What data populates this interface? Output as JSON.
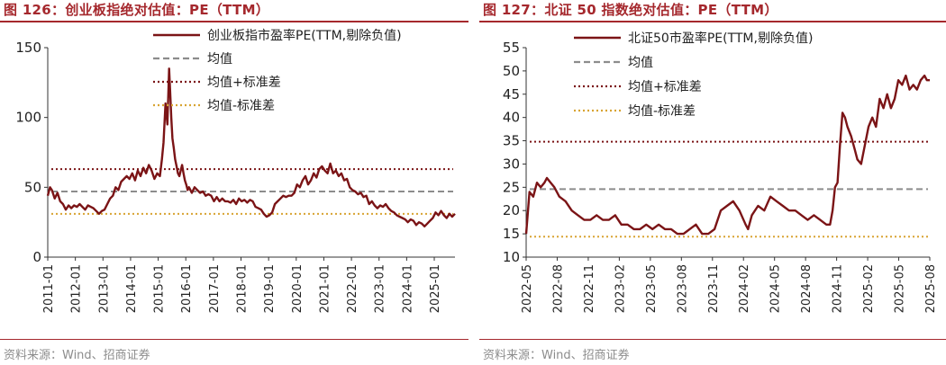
{
  "charts": [
    {
      "figure_title": "图 126：创业板指绝对估值：PE（TTM）",
      "source": "资料来源：Wind、招商证券",
      "chart_data": {
        "type": "line",
        "title": "图 126：创业板指绝对估值：PE（TTM）",
        "ylim": [
          0,
          150
        ],
        "yticks": [
          0,
          50,
          100,
          150
        ],
        "x_range": [
          2011.0,
          2025.7
        ],
        "x_ticks": [
          "2011-01",
          "2012-01",
          "2013-01",
          "2014-01",
          "2015-01",
          "2016-01",
          "2017-01",
          "2018-01",
          "2019-01",
          "2020-01",
          "2021-01",
          "2022-01",
          "2023-01",
          "2024-01",
          "2025-01"
        ],
        "legend_placement": "top-right",
        "series": [
          {
            "name": "创业板指市盈率PE(TTM,剔除负值)",
            "style": "solid",
            "color": "#7b1416",
            "x": [
              2011.0,
              2011.08,
              2011.15,
              2011.25,
              2011.35,
              2011.45,
              2011.55,
              2011.65,
              2011.75,
              2011.85,
              2011.95,
              2012.05,
              2012.15,
              2012.25,
              2012.35,
              2012.45,
              2012.55,
              2012.65,
              2012.75,
              2012.85,
              2012.95,
              2013.05,
              2013.15,
              2013.25,
              2013.35,
              2013.45,
              2013.55,
              2013.65,
              2013.75,
              2013.85,
              2013.95,
              2014.05,
              2014.15,
              2014.25,
              2014.35,
              2014.45,
              2014.55,
              2014.65,
              2014.75,
              2014.85,
              2014.95,
              2015.05,
              2015.12,
              2015.18,
              2015.25,
              2015.32,
              2015.38,
              2015.42,
              2015.46,
              2015.5,
              2015.55,
              2015.6,
              2015.65,
              2015.7,
              2015.75,
              2015.8,
              2015.85,
              2015.9,
              2015.95,
              2016.0,
              2016.05,
              2016.1,
              2016.2,
              2016.3,
              2016.4,
              2016.5,
              2016.6,
              2016.7,
              2016.8,
              2016.9,
              2017.0,
              2017.1,
              2017.2,
              2017.3,
              2017.4,
              2017.5,
              2017.6,
              2017.7,
              2017.8,
              2017.9,
              2018.0,
              2018.1,
              2018.2,
              2018.3,
              2018.4,
              2018.5,
              2018.6,
              2018.7,
              2018.8,
              2018.9,
              2019.0,
              2019.1,
              2019.2,
              2019.3,
              2019.4,
              2019.5,
              2019.6,
              2019.7,
              2019.8,
              2019.9,
              2020.0,
              2020.1,
              2020.2,
              2020.3,
              2020.4,
              2020.5,
              2020.6,
              2020.7,
              2020.8,
              2020.9,
              2021.0,
              2021.1,
              2021.2,
              2021.3,
              2021.4,
              2021.5,
              2021.6,
              2021.7,
              2021.8,
              2021.9,
              2022.0,
              2022.1,
              2022.2,
              2022.3,
              2022.4,
              2022.5,
              2022.6,
              2022.7,
              2022.8,
              2022.9,
              2023.0,
              2023.1,
              2023.2,
              2023.3,
              2023.4,
              2023.5,
              2023.6,
              2023.7,
              2023.8,
              2023.9,
              2024.0,
              2024.1,
              2024.2,
              2024.3,
              2024.4,
              2024.5,
              2024.6,
              2024.7,
              2024.8,
              2024.9,
              2025.0,
              2025.1,
              2025.2,
              2025.3,
              2025.4,
              2025.5,
              2025.6,
              2025.7
            ],
            "y": [
              44,
              50,
              48,
              42,
              46,
              40,
              38,
              34,
              37,
              35,
              37,
              36,
              38,
              36,
              34,
              37,
              36,
              35,
              33,
              31,
              33,
              34,
              38,
              42,
              44,
              50,
              48,
              54,
              56,
              58,
              56,
              60,
              55,
              62,
              58,
              64,
              60,
              66,
              62,
              56,
              60,
              58,
              70,
              82,
              110,
              95,
              135,
              118,
              100,
              85,
              78,
              70,
              65,
              60,
              58,
              62,
              66,
              60,
              55,
              52,
              48,
              50,
              46,
              50,
              48,
              46,
              47,
              44,
              45,
              44,
              40,
              43,
              40,
              42,
              40,
              40,
              39,
              41,
              38,
              42,
              40,
              41,
              39,
              41,
              40,
              36,
              35,
              34,
              31,
              29,
              30,
              32,
              38,
              40,
              42,
              44,
              43,
              44,
              44,
              46,
              52,
              50,
              55,
              58,
              52,
              55,
              60,
              57,
              63,
              65,
              62,
              60,
              67,
              60,
              62,
              58,
              60,
              55,
              56,
              50,
              48,
              47,
              45,
              46,
              43,
              44,
              38,
              40,
              37,
              35,
              37,
              36,
              38,
              35,
              33,
              32,
              30,
              29,
              28,
              27,
              25,
              27,
              26,
              23,
              25,
              24,
              22,
              24,
              26,
              28,
              32,
              30,
              33,
              30,
              28,
              31,
              29,
              31
            ]
          },
          {
            "name": "均值",
            "style": "dashed",
            "color": "#8c8c8c",
            "value": 47
          },
          {
            "name": "均值+标准差",
            "style": "dotted",
            "color": "#7b1416",
            "value": 63
          },
          {
            "name": "均值-标准差",
            "style": "dotted",
            "color": "#d8a433",
            "value": 31
          }
        ]
      }
    },
    {
      "figure_title": "图 127：北证 50 指数绝对估值：PE（TTM）",
      "source": "资料来源：Wind、招商证券",
      "chart_data": {
        "type": "line",
        "title": "图 127：北证 50 指数绝对估值：PE（TTM）",
        "ylim": [
          10,
          55
        ],
        "yticks": [
          10,
          15,
          20,
          25,
          30,
          35,
          40,
          45,
          50,
          55
        ],
        "x_range": [
          2022.333,
          2025.583
        ],
        "x_ticks": [
          "2022-05",
          "2022-08",
          "2022-11",
          "2023-02",
          "2023-05",
          "2023-08",
          "2023-11",
          "2024-02",
          "2024-05",
          "2024-08",
          "2024-11",
          "2025-02",
          "2025-05",
          "2025-08"
        ],
        "legend_placement": "top-right",
        "series": [
          {
            "name": "北证50市盈率PE(TTM,剔除负值)",
            "style": "solid",
            "color": "#7b1416",
            "x": [
              2022.333,
              2022.36,
              2022.39,
              2022.42,
              2022.45,
              2022.48,
              2022.5,
              2022.53,
              2022.56,
              2022.6,
              2022.65,
              2022.7,
              2022.75,
              2022.8,
              2022.85,
              2022.9,
              2022.95,
              2023.0,
              2023.05,
              2023.1,
              2023.15,
              2023.2,
              2023.25,
              2023.3,
              2023.35,
              2023.4,
              2023.45,
              2023.5,
              2023.55,
              2023.6,
              2023.65,
              2023.7,
              2023.75,
              2023.8,
              2023.85,
              2023.9,
              2023.95,
              2024.0,
              2024.05,
              2024.1,
              2024.12,
              2024.15,
              2024.2,
              2024.25,
              2024.3,
              2024.35,
              2024.4,
              2024.45,
              2024.5,
              2024.55,
              2024.6,
              2024.65,
              2024.7,
              2024.75,
              2024.78,
              2024.8,
              2024.82,
              2024.84,
              2024.86,
              2024.88,
              2024.9,
              2024.92,
              2024.95,
              2024.98,
              2025.0,
              2025.03,
              2025.06,
              2025.09,
              2025.12,
              2025.15,
              2025.18,
              2025.21,
              2025.24,
              2025.27,
              2025.3,
              2025.33,
              2025.36,
              2025.39,
              2025.42,
              2025.45,
              2025.48,
              2025.51,
              2025.54,
              2025.56,
              2025.583
            ],
            "y": [
              15,
              24,
              23,
              26,
              25,
              26,
              27,
              26,
              25,
              23,
              22,
              20,
              19,
              18,
              18,
              19,
              18,
              18,
              19,
              17,
              17,
              16,
              16,
              17,
              16,
              17,
              16,
              16,
              15,
              15,
              16,
              17,
              15,
              15,
              16,
              20,
              21,
              22,
              20,
              17,
              16,
              19,
              21,
              20,
              23,
              22,
              21,
              20,
              20,
              19,
              18,
              19,
              18,
              17,
              17,
              20,
              25,
              26,
              34,
              41,
              40,
              38,
              36,
              33,
              31,
              30,
              34,
              38,
              40,
              38,
              44,
              42,
              45,
              42,
              44,
              48,
              47,
              49,
              46,
              47,
              46,
              48,
              49,
              48,
              48
            ]
          },
          {
            "name": "均值",
            "style": "dashed",
            "color": "#8c8c8c",
            "value": 24.6
          },
          {
            "name": "均值+标准差",
            "style": "dotted",
            "color": "#7b1416",
            "value": 34.8
          },
          {
            "name": "均值-标准差",
            "style": "dotted",
            "color": "#d8a433",
            "value": 14.4
          }
        ]
      }
    }
  ]
}
